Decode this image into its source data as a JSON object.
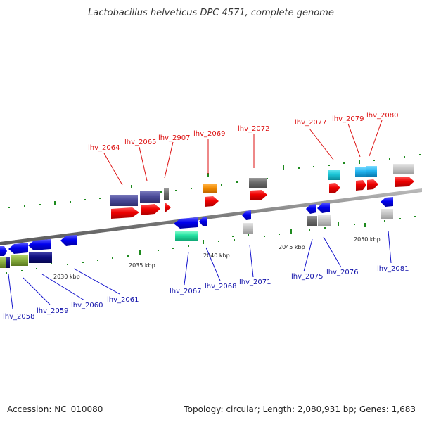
{
  "title": "Lactobacillus helveticus DPC 4571, complete genome",
  "footer": {
    "accession": "Accession: NC_010080",
    "info": "Topology: circular; Length: 2,080,931 bp; Genes: 1,683"
  },
  "colors": {
    "background": "#ffffff",
    "backbone": "#8a8a8a",
    "tick": "#1e8a1e",
    "label_red": "#dd1111",
    "label_blue": "#1111aa"
  },
  "kbp_labels": [
    "2030 kbp",
    "2035 kbp",
    "2040 kbp",
    "2045 kbp",
    "2050 kbp"
  ],
  "genes_top": [
    "lhv_2064",
    "lhv_2065",
    "lhv_2907",
    "lhv_2069",
    "lhv_2072",
    "lhv_2077",
    "lhv_2079",
    "lhv_2080"
  ],
  "genes_bottom": [
    "lhv_2058",
    "lhv_2059",
    "lhv_2060",
    "lhv_2061",
    "lhv_2067",
    "lhv_2068",
    "lhv_2071",
    "lhv_2075",
    "lhv_2076",
    "lhv_2081"
  ]
}
